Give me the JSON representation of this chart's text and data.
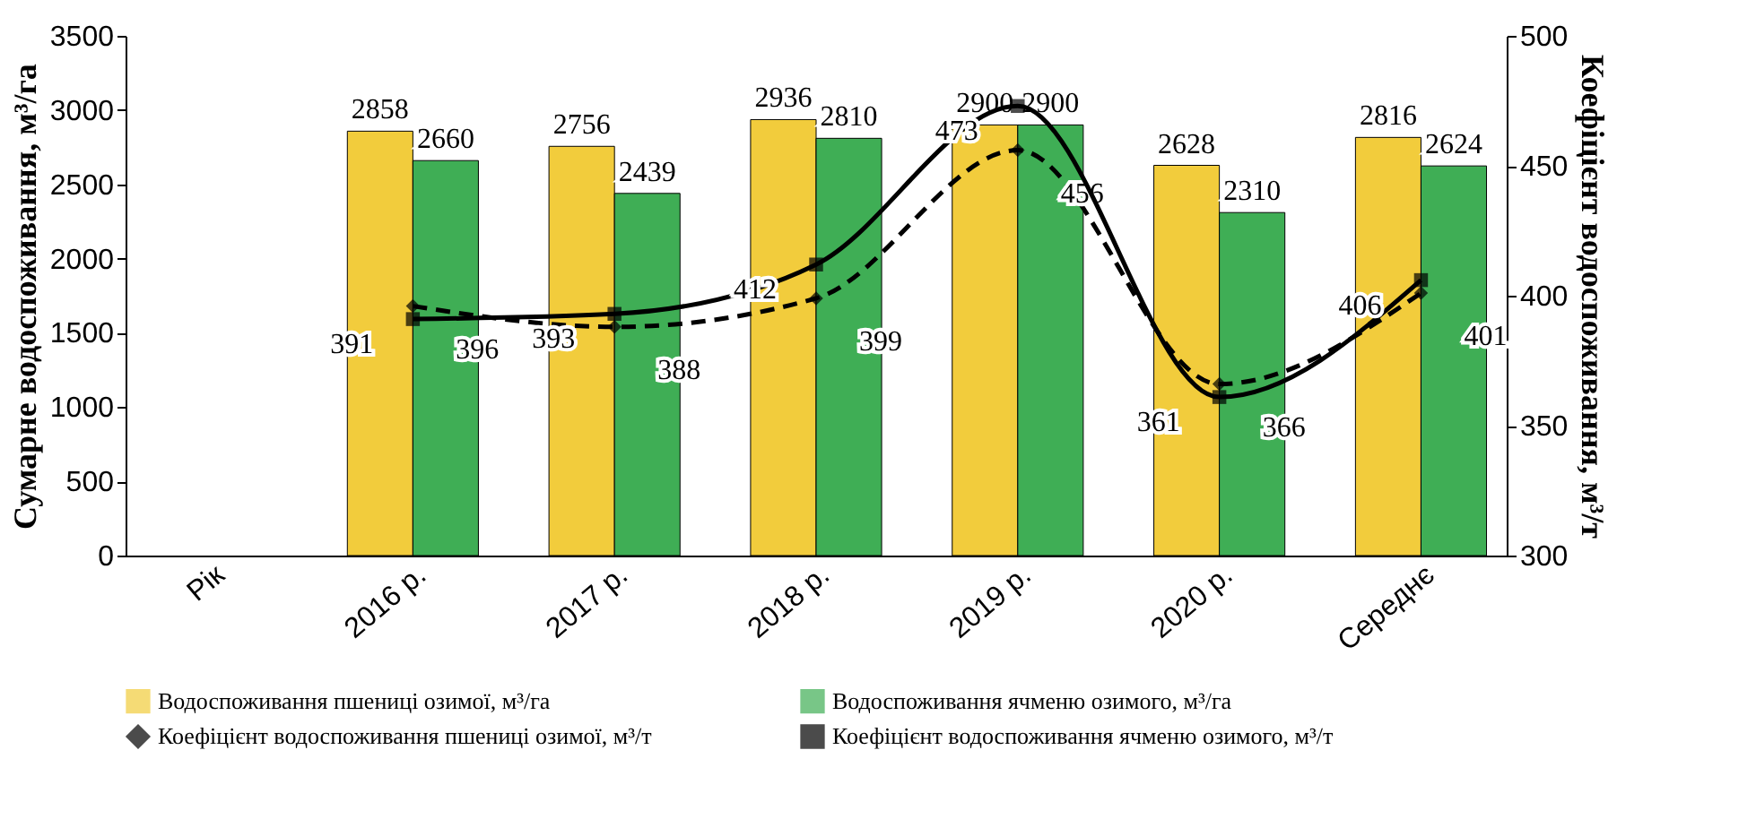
{
  "chart_data": {
    "type": "bar",
    "categories": [
      "Рік",
      "2016 р.",
      "2017 р.",
      "2018 р.",
      "2019 р.",
      "2020 р.",
      "Середнє"
    ],
    "ylabel": "Сумарне водоспоживання, м³/га",
    "y2label": "Коефіцієнт водоспоживання, м³/т",
    "ylim": [
      0,
      3500
    ],
    "yticks": [
      0,
      500,
      1000,
      1500,
      2000,
      2500,
      3000,
      3500
    ],
    "y2lim": [
      300,
      500
    ],
    "y2ticks": [
      300,
      350,
      400,
      450,
      500
    ],
    "legend": "bottom",
    "data_labels": true,
    "series": [
      {
        "name": "Водоспоживання пшениці озимої, м³/га",
        "color": "#f2cc3c",
        "values": [
          null,
          2858,
          2756,
          2936,
          2900,
          2628,
          2816
        ]
      },
      {
        "name": "Водоспоживання ячменю озимого, м³/га",
        "color": "#3fae55",
        "values": [
          null,
          2660,
          2439,
          2810,
          2900,
          2310,
          2624
        ]
      },
      {
        "name": "Коефіцієнт водоспоживання пшениці озимої, м³/т",
        "type": "line",
        "axis": "y2",
        "color": "#000000",
        "marker": "diamond",
        "line_style": "dashed",
        "values": [
          null,
          396,
          388,
          399,
          456,
          366,
          401
        ]
      },
      {
        "name": "Коефіцієнт водоспоживання ячменю озимого, м³/т",
        "type": "line",
        "axis": "y2",
        "color": "#000000",
        "marker": "square",
        "line_style": "solid",
        "values": [
          null,
          391,
          393,
          412,
          473,
          361,
          406
        ]
      }
    ]
  }
}
